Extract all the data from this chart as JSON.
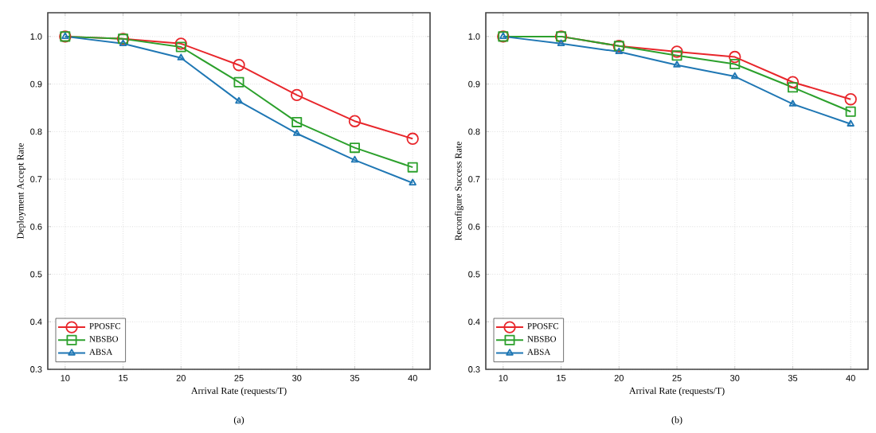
{
  "chart_data": [
    {
      "type": "line",
      "xlabel": "Arrival Rate (requests/T)",
      "ylabel": "Deployment Accept Rate",
      "annotations": [
        "(a)"
      ],
      "x": [
        10,
        15,
        20,
        25,
        30,
        35,
        40
      ],
      "series": [
        {
          "name": "PPOSFC",
          "color": "#e8262b",
          "marker": "circle",
          "values": [
            1.0,
            0.995,
            0.985,
            0.94,
            0.877,
            0.822,
            0.785
          ]
        },
        {
          "name": "NBSBO",
          "color": "#2ca02c",
          "marker": "square",
          "values": [
            1.0,
            0.995,
            0.978,
            0.904,
            0.82,
            0.766,
            0.725
          ]
        },
        {
          "name": "ABSA",
          "color": "#1f77b4",
          "marker": "triangle",
          "values": [
            1.0,
            0.985,
            0.955,
            0.864,
            0.796,
            0.74,
            0.692
          ]
        }
      ],
      "xlim": [
        8.5,
        41.5
      ],
      "ylim": [
        0.3,
        1.05
      ],
      "xticks": [
        10,
        15,
        20,
        25,
        30,
        35,
        40
      ],
      "yticks": [
        {
          "value": 0.3,
          "label": "0.3"
        },
        {
          "value": 0.4,
          "label": "0.4"
        },
        {
          "value": 0.5,
          "label": "0.5"
        },
        {
          "value": 0.6,
          "label": "0.6"
        },
        {
          "value": 0.7,
          "label": "0.7"
        },
        {
          "value": 0.8,
          "label": "0.8"
        },
        {
          "value": 0.9,
          "label": "0.9"
        },
        {
          "value": 1.0,
          "label": "1.0"
        }
      ],
      "grid": true,
      "legend": "bottom left",
      "line_style": "solid"
    },
    {
      "type": "line",
      "xlabel": "Arrival Rate (requests/T)",
      "ylabel": "Reconfigure Success Rate",
      "annotations": [
        "(b)"
      ],
      "x": [
        10,
        15,
        20,
        25,
        30,
        35,
        40
      ],
      "series": [
        {
          "name": "PPOSFC",
          "color": "#e8262b",
          "marker": "circle",
          "values": [
            1.0,
            1.0,
            0.98,
            0.968,
            0.957,
            0.904,
            0.868
          ]
        },
        {
          "name": "NBSBO",
          "color": "#2ca02c",
          "marker": "square",
          "values": [
            1.0,
            1.0,
            0.98,
            0.96,
            0.942,
            0.893,
            0.842
          ]
        },
        {
          "name": "ABSA",
          "color": "#1f77b4",
          "marker": "triangle",
          "values": [
            1.0,
            0.985,
            0.968,
            0.94,
            0.916,
            0.858,
            0.816
          ]
        }
      ],
      "xlim": [
        8.5,
        41.5
      ],
      "ylim": [
        0.3,
        1.05
      ],
      "xticks": [
        10,
        15,
        20,
        25,
        30,
        35,
        40
      ],
      "yticks": [
        {
          "value": 0.3,
          "label": "0.3"
        },
        {
          "value": 0.4,
          "label": "0.4"
        },
        {
          "value": 0.5,
          "label": "0.5"
        },
        {
          "value": 0.6,
          "label": "0.6"
        },
        {
          "value": 0.7,
          "label": "0.7"
        },
        {
          "value": 0.8,
          "label": "0.8"
        },
        {
          "value": 0.9,
          "label": "0.9"
        },
        {
          "value": 1.0,
          "label": "1.0"
        }
      ],
      "grid": true,
      "legend": "bottom left",
      "line_style": "solid"
    }
  ]
}
